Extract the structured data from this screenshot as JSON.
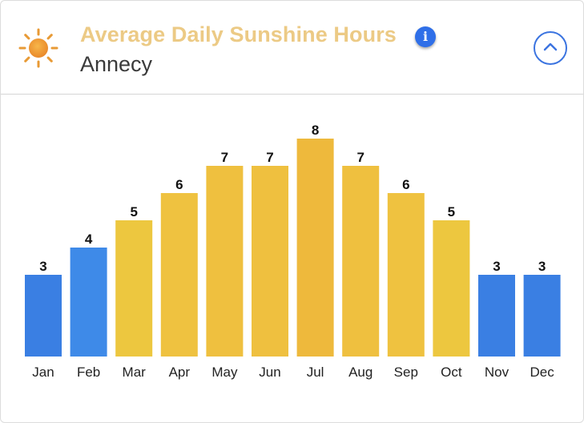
{
  "header": {
    "title": "Average Daily Sunshine Hours",
    "location": "Annecy",
    "icons": {
      "weather": "sun-icon",
      "info": "info-icon",
      "toggle": "chevron-up-icon"
    }
  },
  "colors": {
    "title": "#ecca85",
    "cool_bar": "#3a7fe3",
    "warm_bar": "#edc33f",
    "accent": "#3b74e0"
  },
  "chart_data": {
    "type": "bar",
    "title": "Average Daily Sunshine Hours",
    "xlabel": "",
    "ylabel": "",
    "categories": [
      "Jan",
      "Feb",
      "Mar",
      "Apr",
      "May",
      "Jun",
      "Jul",
      "Aug",
      "Sep",
      "Oct",
      "Nov",
      "Dec"
    ],
    "values": [
      3,
      4,
      5,
      6,
      7,
      7,
      8,
      7,
      6,
      5,
      3,
      3
    ],
    "bar_colors": [
      "#3a7fe3",
      "#3e8ae8",
      "#edc73f",
      "#efc240",
      "#efc03f",
      "#efc03f",
      "#eeb93c",
      "#efc03f",
      "#efc240",
      "#edc73f",
      "#3a7fe3",
      "#3a7fe3"
    ],
    "data_labels": true,
    "grid": false,
    "legend": "none"
  }
}
